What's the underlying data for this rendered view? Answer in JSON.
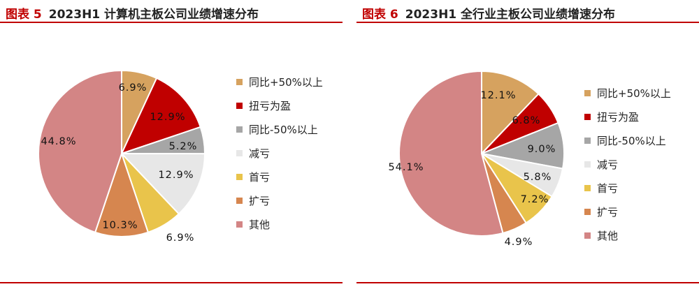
{
  "charts": [
    {
      "figure_label": "图表 5",
      "title": "2023H1 计算机主板公司业绩增速分布"
    },
    {
      "figure_label": "图表 6",
      "title": "2023H1 全行业主板公司业绩增速分布"
    }
  ],
  "legend": [
    {
      "label": "同比+50%以上",
      "color": "#d6a25f"
    },
    {
      "label": "扭亏为盈",
      "color": "#c00000"
    },
    {
      "label": "同比-50%以上",
      "color": "#a6a6a6"
    },
    {
      "label": "减亏",
      "color": "#e7e7e7"
    },
    {
      "label": "首亏",
      "color": "#e9c44b"
    },
    {
      "label": "扩亏",
      "color": "#d6864f"
    },
    {
      "label": "其他",
      "color": "#d38585"
    }
  ],
  "chart_data": [
    {
      "type": "pie",
      "title": "2023H1 计算机主板公司业绩增速分布",
      "categories": [
        "同比+50%以上",
        "扭亏为盈",
        "同比-50%以上",
        "减亏",
        "首亏",
        "扩亏",
        "其他"
      ],
      "values": [
        6.9,
        12.9,
        5.2,
        12.9,
        6.9,
        10.3,
        44.8
      ],
      "labels": [
        "6.9%",
        "12.9%",
        "5.2%",
        "12.9%",
        "6.9%",
        "10.3%",
        "44.8%"
      ],
      "legend_position": "right"
    },
    {
      "type": "pie",
      "title": "2023H1 全行业主板公司业绩增速分布",
      "categories": [
        "同比+50%以上",
        "扭亏为盈",
        "同比-50%以上",
        "减亏",
        "首亏",
        "扩亏",
        "其他"
      ],
      "values": [
        12.1,
        6.8,
        9.0,
        5.8,
        7.2,
        4.9,
        54.1
      ],
      "labels": [
        "12.1%",
        "6.8%",
        "9.0%",
        "5.8%",
        "7.2%",
        "4.9%",
        "54.1%"
      ],
      "legend_position": "right"
    }
  ]
}
